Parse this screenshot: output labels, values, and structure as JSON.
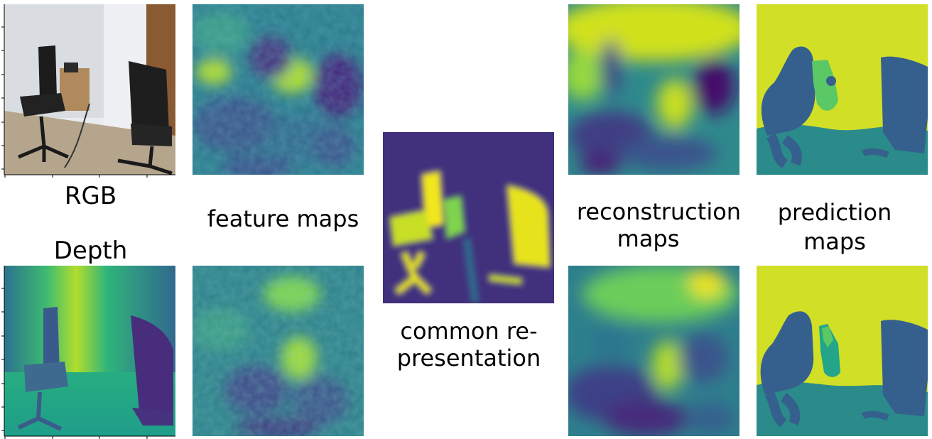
{
  "labels": {
    "rgb": "RGB",
    "depth": "Depth",
    "feature_maps": "feature maps",
    "common_line1": "common re-",
    "common_line2": "presentation",
    "reconstruction_line1": "reconstruction",
    "reconstruction_line2": "maps",
    "prediction_line1": "prediction",
    "prediction_line2": "maps"
  },
  "colors": {
    "viridis_dark": "#440154",
    "viridis_blue": "#3b528b",
    "viridis_teal": "#21908d",
    "viridis_green": "#5dc963",
    "viridis_yellow": "#fde725",
    "seg_yellow": "#d2df27",
    "seg_blue": "#35608d",
    "seg_teal": "#2a8b8a",
    "seg_green": "#5ac864"
  }
}
